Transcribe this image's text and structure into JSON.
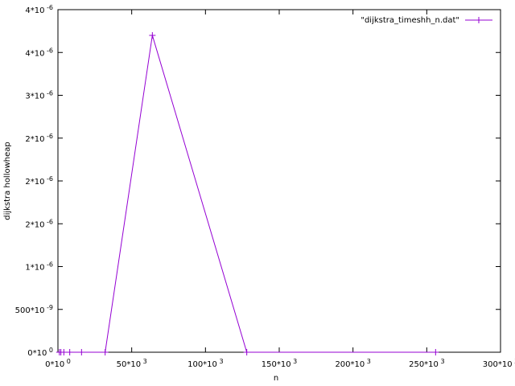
{
  "chart_data": {
    "type": "line",
    "title": "",
    "xlabel": "n",
    "ylabel": "dijkstra hollowheap",
    "xlim": [
      0,
      300000
    ],
    "ylim": [
      0,
      4e-06
    ],
    "x_ticks": [
      {
        "value": 0,
        "base": "0*10",
        "exp": "0"
      },
      {
        "value": 50000,
        "base": "50*10",
        "exp": "3"
      },
      {
        "value": 100000,
        "base": "100*10",
        "exp": "3"
      },
      {
        "value": 150000,
        "base": "150*10",
        "exp": "3"
      },
      {
        "value": 200000,
        "base": "200*10",
        "exp": "3"
      },
      {
        "value": 250000,
        "base": "250*10",
        "exp": "3"
      },
      {
        "value": 300000,
        "base": "300*10",
        "exp": "3"
      }
    ],
    "y_ticks": [
      {
        "value": 0,
        "base": "0*10",
        "exp": "0"
      },
      {
        "value": 5e-07,
        "base": "500*10",
        "exp": "-9"
      },
      {
        "value": 1e-06,
        "base": "1*10",
        "exp": "-6"
      },
      {
        "value": 1.5e-06,
        "base": "2*10",
        "exp": "-6"
      },
      {
        "value": 2e-06,
        "base": "2*10",
        "exp": "-6"
      },
      {
        "value": 2.5e-06,
        "base": "2*10",
        "exp": "-6"
      },
      {
        "value": 3e-06,
        "base": "3*10",
        "exp": "-6"
      },
      {
        "value": 3.5e-06,
        "base": "4*10",
        "exp": "-6"
      },
      {
        "value": 4e-06,
        "base": "4*10",
        "exp": "-6"
      }
    ],
    "grid": false,
    "legend_position": "top-right",
    "series": [
      {
        "name": "\"dijkstra_timeshh_n.dat\"",
        "color": "#9400d3",
        "marker": "plus",
        "x": [
          1000,
          2000,
          4000,
          8000,
          16000,
          32000,
          64000,
          128000,
          256000
        ],
        "y": [
          0,
          0,
          0,
          0,
          0,
          0,
          3.7e-06,
          0,
          0
        ]
      }
    ]
  }
}
